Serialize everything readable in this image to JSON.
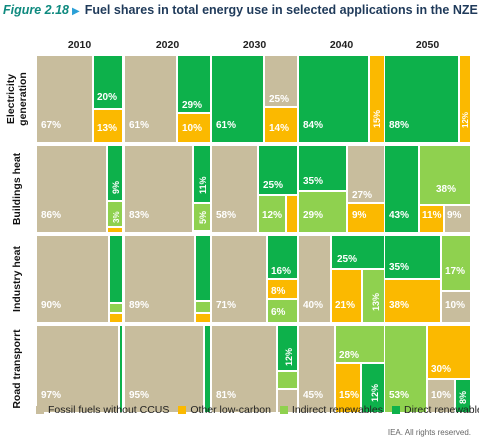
{
  "figure": {
    "label": "Figure 2.18",
    "arrow": "▶",
    "title": "Fuel shares in total energy use in selected applications in the NZE",
    "credit": "IEA. All rights reserved."
  },
  "colors": {
    "fossil": "#c8bd9d",
    "low_carbon": "#fbb900",
    "indirect": "#8fd14f",
    "direct": "#0db14b"
  },
  "chart_data": {
    "type": "treemap-grid",
    "columns": [
      "2010",
      "2020",
      "2030",
      "2040",
      "2050"
    ],
    "legend": [
      {
        "key": "fossil",
        "label": "Fossil fuels without CCUS"
      },
      {
        "key": "low_carbon",
        "label": "Other low-carbon"
      },
      {
        "key": "indirect",
        "label": "Indirect renewables"
      },
      {
        "key": "direct",
        "label": "Direct renewables"
      }
    ],
    "rows": [
      {
        "label": "Electricity generation",
        "cells": [
          {
            "fossil": 67,
            "direct": 20,
            "low_carbon": 13,
            "indirect": 0,
            "labels": [
              "67%",
              "20%",
              "13%"
            ]
          },
          {
            "fossil": 61,
            "direct": 29,
            "low_carbon": 10,
            "indirect": 0,
            "labels": [
              "61%",
              "29%",
              "10%"
            ]
          },
          {
            "fossil": 25,
            "direct": 61,
            "low_carbon": 14,
            "indirect": 0,
            "labels": [
              "61%",
              "25%",
              "14%"
            ]
          },
          {
            "fossil": 1,
            "direct": 84,
            "low_carbon": 15,
            "indirect": 0,
            "labels": [
              "84%",
              "15%"
            ]
          },
          {
            "fossil": 0,
            "direct": 88,
            "low_carbon": 12,
            "indirect": 0,
            "labels": [
              "88%",
              "12%"
            ]
          }
        ]
      },
      {
        "label": "Buildings heat",
        "cells": [
          {
            "fossil": 86,
            "direct": 9,
            "low_carbon": 2,
            "indirect": 3,
            "labels": [
              "86%",
              "9%",
              "3%"
            ]
          },
          {
            "fossil": 83,
            "direct": 11,
            "low_carbon": 1,
            "indirect": 5,
            "labels": [
              "83%",
              "11%",
              "5%"
            ]
          },
          {
            "fossil": 58,
            "direct": 25,
            "low_carbon": 5,
            "indirect": 12,
            "labels": [
              "58%",
              "25%",
              "12%"
            ]
          },
          {
            "fossil": 27,
            "direct": 35,
            "low_carbon": 9,
            "indirect": 29,
            "labels": [
              "35%",
              "27%",
              "29%",
              "9%"
            ]
          },
          {
            "fossil": 9,
            "direct": 43,
            "low_carbon": 11,
            "indirect": 38,
            "labels": [
              "38%",
              "43%",
              "11%",
              "9%"
            ]
          }
        ]
      },
      {
        "label": "Industry heat",
        "cells": [
          {
            "fossil": 90,
            "direct": 8,
            "low_carbon": 1,
            "indirect": 1,
            "labels": [
              "90%"
            ]
          },
          {
            "fossil": 89,
            "direct": 8,
            "low_carbon": 1,
            "indirect": 2,
            "labels": [
              "89%"
            ]
          },
          {
            "fossil": 71,
            "direct": 16,
            "low_carbon": 8,
            "indirect": 6,
            "labels": [
              "71%",
              "16%",
              "8%",
              "6%"
            ]
          },
          {
            "fossil": 40,
            "direct": 25,
            "low_carbon": 21,
            "indirect": 13,
            "labels": [
              "25%",
              "40%",
              "21%",
              "13%"
            ]
          },
          {
            "fossil": 10,
            "direct": 35,
            "low_carbon": 38,
            "indirect": 17,
            "labels": [
              "35%",
              "17%",
              "38%",
              "10%"
            ]
          }
        ]
      },
      {
        "label": "Road transporrt",
        "cells": [
          {
            "fossil": 97,
            "direct": 1,
            "low_carbon": 1,
            "indirect": 1,
            "labels": [
              "97%"
            ]
          },
          {
            "fossil": 95,
            "direct": 1,
            "low_carbon": 2,
            "indirect": 2,
            "labels": [
              "95%"
            ]
          },
          {
            "fossil": 81,
            "direct": 12,
            "low_carbon": 2,
            "indirect": 5,
            "labels": [
              "12%",
              "81%"
            ]
          },
          {
            "fossil": 45,
            "direct": 12,
            "low_carbon": 15,
            "indirect": 28,
            "labels": [
              "28%",
              "45%",
              "15%",
              "12%"
            ]
          },
          {
            "fossil": 10,
            "direct": 8,
            "low_carbon": 30,
            "indirect": 53,
            "labels": [
              "30%",
              "53%",
              "10%",
              "8%"
            ]
          }
        ]
      }
    ]
  }
}
